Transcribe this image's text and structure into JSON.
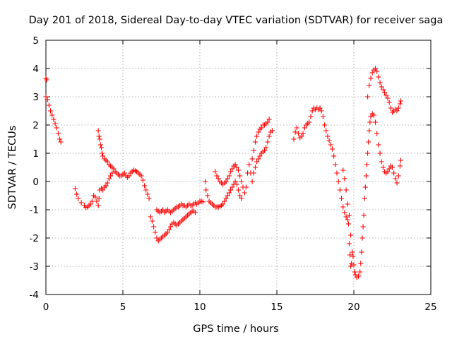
{
  "chart_data": {
    "type": "scatter",
    "title": "Day 201 of 2018, Sidereal Day-to-day VTEC variation (SDTVAR) for receiver saga",
    "xlabel": "GPS time / hours",
    "ylabel": "SDTVAR / TECUs",
    "xlim": [
      0,
      25
    ],
    "ylim": [
      -4,
      5
    ],
    "xticks": [
      "0",
      "5",
      "10",
      "15",
      "20",
      "25"
    ],
    "yticks": [
      "-4",
      "-3",
      "-2",
      "-1",
      "0",
      "1",
      "2",
      "3",
      "4",
      "5"
    ],
    "grid": true,
    "legend": "none",
    "marker": "plus",
    "color": "#ff0000",
    "series": [
      {
        "values": [
          [
            0.0,
            3.65
          ],
          [
            0.05,
            3.6
          ],
          [
            0.0,
            3.0
          ],
          [
            0.1,
            2.9
          ],
          [
            0.2,
            2.7
          ],
          [
            0.3,
            2.5
          ],
          [
            0.4,
            2.35
          ],
          [
            0.5,
            2.2
          ],
          [
            0.6,
            2.05
          ],
          [
            0.7,
            1.9
          ],
          [
            0.8,
            1.7
          ],
          [
            0.9,
            1.5
          ],
          [
            0.97,
            1.4
          ],
          [
            1.9,
            -0.25
          ],
          [
            2.0,
            -0.45
          ],
          [
            2.1,
            -0.6
          ],
          [
            2.3,
            -0.75
          ],
          [
            2.5,
            -0.85
          ],
          [
            2.6,
            -0.92
          ],
          [
            2.7,
            -0.9
          ],
          [
            2.8,
            -0.85
          ],
          [
            2.9,
            -0.8
          ],
          [
            3.0,
            -0.7
          ],
          [
            3.1,
            -0.5
          ],
          [
            3.2,
            -0.55
          ],
          [
            3.3,
            -0.7
          ],
          [
            3.4,
            -0.85
          ],
          [
            3.45,
            -0.6
          ],
          [
            3.5,
            -0.3
          ],
          [
            3.6,
            -0.25
          ],
          [
            3.7,
            -0.3
          ],
          [
            3.8,
            -0.2
          ],
          [
            3.9,
            -0.15
          ],
          [
            4.0,
            -0.05
          ],
          [
            4.1,
            0.1
          ],
          [
            4.2,
            0.2
          ],
          [
            4.3,
            0.3
          ],
          [
            3.4,
            1.8
          ],
          [
            3.45,
            1.6
          ],
          [
            3.5,
            1.5
          ],
          [
            3.55,
            1.3
          ],
          [
            3.6,
            1.2
          ],
          [
            3.65,
            1.0
          ],
          [
            3.7,
            0.9
          ],
          [
            3.8,
            0.8
          ],
          [
            3.9,
            0.75
          ],
          [
            4.0,
            0.7
          ],
          [
            4.1,
            0.6
          ],
          [
            4.2,
            0.55
          ],
          [
            4.3,
            0.5
          ],
          [
            4.4,
            0.45
          ],
          [
            4.5,
            0.35
          ],
          [
            4.6,
            0.3
          ],
          [
            4.7,
            0.25
          ],
          [
            4.8,
            0.2
          ],
          [
            4.9,
            0.2
          ],
          [
            5.0,
            0.25
          ],
          [
            5.1,
            0.3
          ],
          [
            5.2,
            0.2
          ],
          [
            5.3,
            0.15
          ],
          [
            5.4,
            0.2
          ],
          [
            5.5,
            0.3
          ],
          [
            5.6,
            0.35
          ],
          [
            5.7,
            0.4
          ],
          [
            5.8,
            0.38
          ],
          [
            5.9,
            0.35
          ],
          [
            6.0,
            0.3
          ],
          [
            6.1,
            0.25
          ],
          [
            6.2,
            0.2
          ],
          [
            6.3,
            0.05
          ],
          [
            6.4,
            -0.15
          ],
          [
            6.5,
            -0.3
          ],
          [
            6.6,
            -0.45
          ],
          [
            6.7,
            -0.6
          ],
          [
            6.8,
            -1.25
          ],
          [
            6.9,
            -1.4
          ],
          [
            7.0,
            -1.6
          ],
          [
            7.1,
            -1.8
          ],
          [
            7.2,
            -2.0
          ],
          [
            7.3,
            -2.1
          ],
          [
            7.4,
            -2.05
          ],
          [
            7.5,
            -2.0
          ],
          [
            7.6,
            -1.95
          ],
          [
            7.7,
            -1.9
          ],
          [
            7.8,
            -1.85
          ],
          [
            7.9,
            -1.8
          ],
          [
            8.0,
            -1.7
          ],
          [
            8.1,
            -1.6
          ],
          [
            8.2,
            -1.5
          ],
          [
            8.3,
            -1.45
          ],
          [
            8.4,
            -1.5
          ],
          [
            8.5,
            -1.55
          ],
          [
            8.6,
            -1.5
          ],
          [
            8.7,
            -1.45
          ],
          [
            8.8,
            -1.4
          ],
          [
            8.9,
            -1.35
          ],
          [
            9.0,
            -1.3
          ],
          [
            9.1,
            -1.25
          ],
          [
            9.2,
            -1.2
          ],
          [
            9.3,
            -1.15
          ],
          [
            9.4,
            -1.1
          ],
          [
            9.5,
            -1.05
          ],
          [
            9.6,
            -1.05
          ],
          [
            9.7,
            -1.1
          ],
          [
            7.2,
            -1.0
          ],
          [
            7.3,
            -1.05
          ],
          [
            7.4,
            -1.1
          ],
          [
            7.5,
            -1.05
          ],
          [
            7.6,
            -1.0
          ],
          [
            7.7,
            -1.1
          ],
          [
            7.8,
            -1.05
          ],
          [
            7.9,
            -1.0
          ],
          [
            8.0,
            -1.05
          ],
          [
            8.1,
            -1.1
          ],
          [
            8.2,
            -1.05
          ],
          [
            8.3,
            -1.0
          ],
          [
            8.4,
            -0.95
          ],
          [
            8.5,
            -0.9
          ],
          [
            8.6,
            -0.9
          ],
          [
            8.7,
            -0.85
          ],
          [
            8.8,
            -0.8
          ],
          [
            8.9,
            -0.85
          ],
          [
            9.0,
            -0.85
          ],
          [
            9.1,
            -0.9
          ],
          [
            9.2,
            -0.85
          ],
          [
            9.3,
            -0.8
          ],
          [
            9.4,
            -0.85
          ],
          [
            9.5,
            -0.85
          ],
          [
            9.6,
            -0.8
          ],
          [
            9.7,
            -0.75
          ],
          [
            9.8,
            -0.8
          ],
          [
            9.9,
            -0.75
          ],
          [
            10.0,
            -0.7
          ],
          [
            10.1,
            -0.7
          ],
          [
            10.2,
            -0.72
          ],
          [
            10.35,
            0.0
          ],
          [
            10.4,
            -0.3
          ],
          [
            10.5,
            -0.5
          ],
          [
            10.6,
            -0.7
          ],
          [
            10.7,
            -0.75
          ],
          [
            10.8,
            -0.8
          ],
          [
            10.9,
            -0.85
          ],
          [
            11.0,
            -0.9
          ],
          [
            11.1,
            -0.9
          ],
          [
            11.2,
            -0.9
          ],
          [
            11.3,
            -0.88
          ],
          [
            11.4,
            -0.85
          ],
          [
            11.5,
            -0.8
          ],
          [
            11.6,
            -0.7
          ],
          [
            11.7,
            -0.6
          ],
          [
            11.8,
            -0.5
          ],
          [
            11.9,
            -0.4
          ],
          [
            12.0,
            -0.3
          ],
          [
            12.1,
            -0.2
          ],
          [
            12.2,
            -0.1
          ],
          [
            12.3,
            0.0
          ],
          [
            12.4,
            -0.1
          ],
          [
            12.5,
            -0.3
          ],
          [
            12.6,
            -0.5
          ],
          [
            12.7,
            -0.6
          ],
          [
            11.0,
            0.35
          ],
          [
            11.1,
            0.2
          ],
          [
            11.2,
            0.1
          ],
          [
            11.3,
            0.0
          ],
          [
            11.4,
            -0.05
          ],
          [
            11.5,
            -0.1
          ],
          [
            11.6,
            -0.05
          ],
          [
            11.7,
            0.0
          ],
          [
            11.8,
            0.1
          ],
          [
            11.9,
            0.2
          ],
          [
            12.0,
            0.35
          ],
          [
            12.1,
            0.45
          ],
          [
            12.2,
            0.55
          ],
          [
            12.3,
            0.6
          ],
          [
            12.4,
            0.5
          ],
          [
            12.5,
            0.4
          ],
          [
            12.6,
            0.2
          ],
          [
            12.7,
            0.0
          ],
          [
            12.8,
            -0.2
          ],
          [
            12.9,
            -0.4
          ],
          [
            13.0,
            -0.2
          ],
          [
            13.1,
            0.3
          ],
          [
            13.2,
            0.6
          ],
          [
            13.3,
            0.3
          ],
          [
            13.4,
            0.0
          ],
          [
            13.5,
            0.3
          ],
          [
            13.6,
            0.5
          ],
          [
            13.7,
            0.7
          ],
          [
            13.8,
            0.8
          ],
          [
            13.9,
            0.9
          ],
          [
            14.0,
            1.0
          ],
          [
            14.1,
            1.05
          ],
          [
            14.2,
            1.1
          ],
          [
            14.3,
            1.2
          ],
          [
            14.4,
            1.4
          ],
          [
            14.5,
            1.6
          ],
          [
            14.6,
            1.75
          ],
          [
            14.7,
            1.8
          ],
          [
            13.4,
            0.8
          ],
          [
            13.5,
            1.1
          ],
          [
            13.6,
            1.4
          ],
          [
            13.7,
            1.6
          ],
          [
            13.8,
            1.75
          ],
          [
            13.9,
            1.85
          ],
          [
            14.0,
            1.9
          ],
          [
            14.1,
            2.0
          ],
          [
            14.2,
            2.0
          ],
          [
            14.3,
            2.05
          ],
          [
            14.4,
            2.1
          ],
          [
            14.5,
            2.2
          ],
          [
            16.1,
            1.5
          ],
          [
            16.2,
            1.75
          ],
          [
            16.3,
            1.9
          ],
          [
            16.4,
            1.7
          ],
          [
            16.5,
            1.55
          ],
          [
            16.6,
            1.6
          ],
          [
            16.7,
            1.7
          ],
          [
            16.8,
            1.9
          ],
          [
            16.9,
            2.0
          ],
          [
            17.0,
            2.05
          ],
          [
            17.1,
            2.1
          ],
          [
            17.2,
            2.3
          ],
          [
            17.3,
            2.5
          ],
          [
            17.4,
            2.6
          ],
          [
            17.5,
            2.55
          ],
          [
            17.6,
            2.6
          ],
          [
            17.7,
            2.55
          ],
          [
            17.8,
            2.6
          ],
          [
            17.9,
            2.5
          ],
          [
            18.0,
            2.3
          ],
          [
            18.1,
            2.0
          ],
          [
            18.2,
            1.8
          ],
          [
            18.3,
            1.6
          ],
          [
            18.4,
            1.45
          ],
          [
            18.5,
            1.3
          ],
          [
            18.6,
            1.15
          ],
          [
            18.7,
            0.9
          ],
          [
            18.8,
            0.6
          ],
          [
            18.9,
            0.3
          ],
          [
            19.0,
            0.0
          ],
          [
            19.1,
            -0.3
          ],
          [
            19.2,
            -0.6
          ],
          [
            19.3,
            -0.9
          ],
          [
            19.4,
            -1.1
          ],
          [
            19.5,
            -1.25
          ],
          [
            19.6,
            -1.35
          ],
          [
            19.65,
            -1.5
          ],
          [
            19.7,
            -2.2
          ],
          [
            19.75,
            -2.6
          ],
          [
            19.8,
            -3.0
          ],
          [
            19.85,
            -2.9
          ],
          [
            19.9,
            -2.5
          ],
          [
            19.95,
            -2.65
          ],
          [
            20.0,
            -2.95
          ],
          [
            20.05,
            -3.2
          ],
          [
            20.1,
            -3.3
          ],
          [
            19.3,
            0.4
          ],
          [
            19.4,
            0.1
          ],
          [
            19.5,
            -0.3
          ],
          [
            19.6,
            -0.8
          ],
          [
            19.7,
            -1.2
          ],
          [
            19.8,
            -1.9
          ],
          [
            20.2,
            -3.4
          ],
          [
            20.3,
            -3.35
          ],
          [
            20.4,
            -3.2
          ],
          [
            20.45,
            -2.9
          ],
          [
            20.5,
            -2.5
          ],
          [
            20.55,
            -2.0
          ],
          [
            20.6,
            -1.6
          ],
          [
            20.65,
            -1.2
          ],
          [
            20.7,
            -0.6
          ],
          [
            20.75,
            -0.2
          ],
          [
            20.8,
            0.2
          ],
          [
            20.85,
            0.6
          ],
          [
            20.9,
            1.0
          ],
          [
            20.95,
            1.4
          ],
          [
            21.0,
            1.8
          ],
          [
            21.05,
            2.1
          ],
          [
            21.1,
            2.3
          ],
          [
            21.2,
            2.4
          ],
          [
            21.3,
            2.35
          ],
          [
            21.4,
            2.1
          ],
          [
            21.5,
            1.7
          ],
          [
            21.6,
            1.3
          ],
          [
            21.7,
            1.0
          ],
          [
            21.8,
            0.7
          ],
          [
            21.9,
            0.5
          ],
          [
            22.0,
            0.35
          ],
          [
            22.1,
            0.3
          ],
          [
            22.2,
            0.35
          ],
          [
            22.3,
            0.45
          ],
          [
            22.4,
            0.55
          ],
          [
            22.5,
            0.5
          ],
          [
            22.6,
            0.3
          ],
          [
            22.7,
            0.1
          ],
          [
            22.8,
            -0.05
          ],
          [
            22.9,
            0.2
          ],
          [
            23.0,
            0.55
          ],
          [
            23.05,
            0.75
          ],
          [
            20.9,
            3.0
          ],
          [
            21.0,
            3.4
          ],
          [
            21.1,
            3.65
          ],
          [
            21.2,
            3.85
          ],
          [
            21.3,
            3.95
          ],
          [
            21.4,
            4.0
          ],
          [
            21.5,
            3.9
          ],
          [
            21.6,
            3.7
          ],
          [
            21.7,
            3.5
          ],
          [
            21.8,
            3.35
          ],
          [
            21.9,
            3.25
          ],
          [
            22.0,
            3.15
          ],
          [
            22.1,
            3.05
          ],
          [
            22.2,
            2.95
          ],
          [
            22.3,
            2.8
          ],
          [
            22.4,
            2.6
          ],
          [
            22.5,
            2.45
          ],
          [
            22.6,
            2.5
          ],
          [
            22.7,
            2.55
          ],
          [
            22.8,
            2.5
          ],
          [
            22.9,
            2.6
          ],
          [
            23.0,
            2.75
          ],
          [
            23.05,
            2.85
          ]
        ]
      }
    ]
  }
}
